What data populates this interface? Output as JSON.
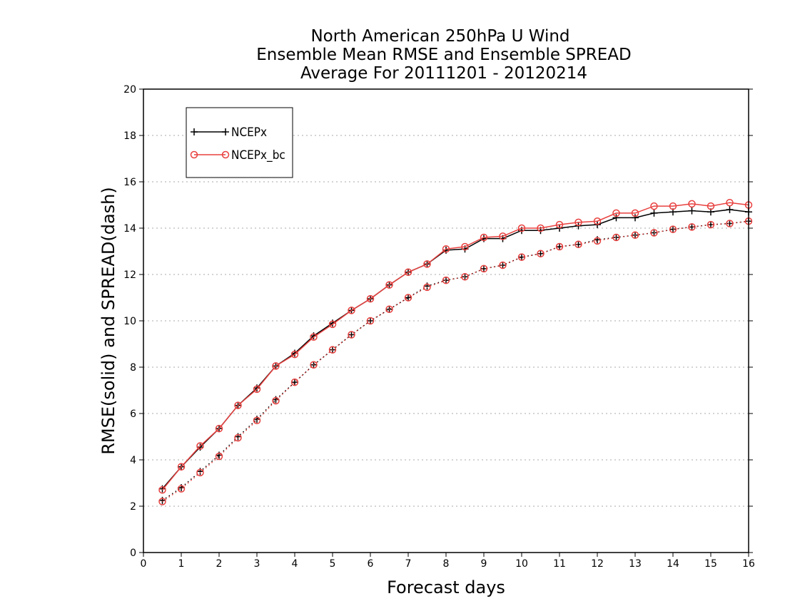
{
  "chart_data": {
    "type": "line",
    "title_lines": [
      "North American 250hPa U Wind",
      "Ensemble Mean RMSE and Ensemble SPREAD",
      "Average For 20111201 - 20120214"
    ],
    "xlabel": "Forecast days",
    "ylabel": "RMSE(solid) and SPREAD(dash)",
    "xlim": [
      0,
      16
    ],
    "ylim": [
      0,
      20
    ],
    "xticks": [
      0,
      1,
      2,
      3,
      4,
      5,
      6,
      7,
      8,
      9,
      10,
      11,
      12,
      13,
      14,
      15,
      16
    ],
    "yticks": [
      0,
      2,
      4,
      6,
      8,
      10,
      12,
      14,
      16,
      18,
      20
    ],
    "grid": "horizontal dotted",
    "legend_position": "top-left",
    "x": [
      0.5,
      1,
      1.5,
      2,
      2.5,
      3,
      3.5,
      4,
      4.5,
      5,
      5.5,
      6,
      6.5,
      7,
      7.5,
      8,
      8.5,
      9,
      9.5,
      10,
      10.5,
      11,
      11.5,
      12,
      12.5,
      13,
      13.5,
      14,
      14.5,
      15,
      15.5,
      16
    ],
    "series": [
      {
        "name": "NCEPx",
        "color": "#000000",
        "marker": "plus",
        "rmse": [
          2.75,
          3.7,
          4.55,
          5.35,
          6.35,
          7.1,
          8.05,
          8.6,
          9.35,
          9.9,
          10.45,
          10.95,
          11.55,
          12.1,
          12.45,
          13.05,
          13.1,
          13.55,
          13.55,
          13.9,
          13.9,
          14.0,
          14.1,
          14.15,
          14.45,
          14.45,
          14.65,
          14.7,
          14.75,
          14.7,
          14.8,
          14.7
        ],
        "spread": [
          2.25,
          2.8,
          3.5,
          4.2,
          5.0,
          5.75,
          6.6,
          7.35,
          8.1,
          8.75,
          9.4,
          10.0,
          10.5,
          11.0,
          11.5,
          11.75,
          11.9,
          12.25,
          12.4,
          12.75,
          12.9,
          13.2,
          13.3,
          13.5,
          13.6,
          13.7,
          13.8,
          13.95,
          14.05,
          14.15,
          14.2,
          14.3
        ]
      },
      {
        "name": "NCEPx_bc",
        "color": "#e8413f",
        "marker": "circle",
        "rmse": [
          2.7,
          3.7,
          4.6,
          5.35,
          6.35,
          7.05,
          8.05,
          8.55,
          9.3,
          9.85,
          10.45,
          10.95,
          11.55,
          12.1,
          12.45,
          13.1,
          13.2,
          13.6,
          13.65,
          14.0,
          14.0,
          14.15,
          14.25,
          14.3,
          14.65,
          14.65,
          14.95,
          14.95,
          15.05,
          14.95,
          15.1,
          15.0
        ],
        "spread": [
          2.2,
          2.75,
          3.45,
          4.15,
          4.95,
          5.7,
          6.55,
          7.35,
          8.1,
          8.75,
          9.4,
          10.0,
          10.5,
          11.0,
          11.45,
          11.75,
          11.9,
          12.25,
          12.4,
          12.75,
          12.9,
          13.2,
          13.3,
          13.45,
          13.6,
          13.7,
          13.8,
          13.95,
          14.05,
          14.15,
          14.2,
          14.3
        ]
      }
    ]
  }
}
